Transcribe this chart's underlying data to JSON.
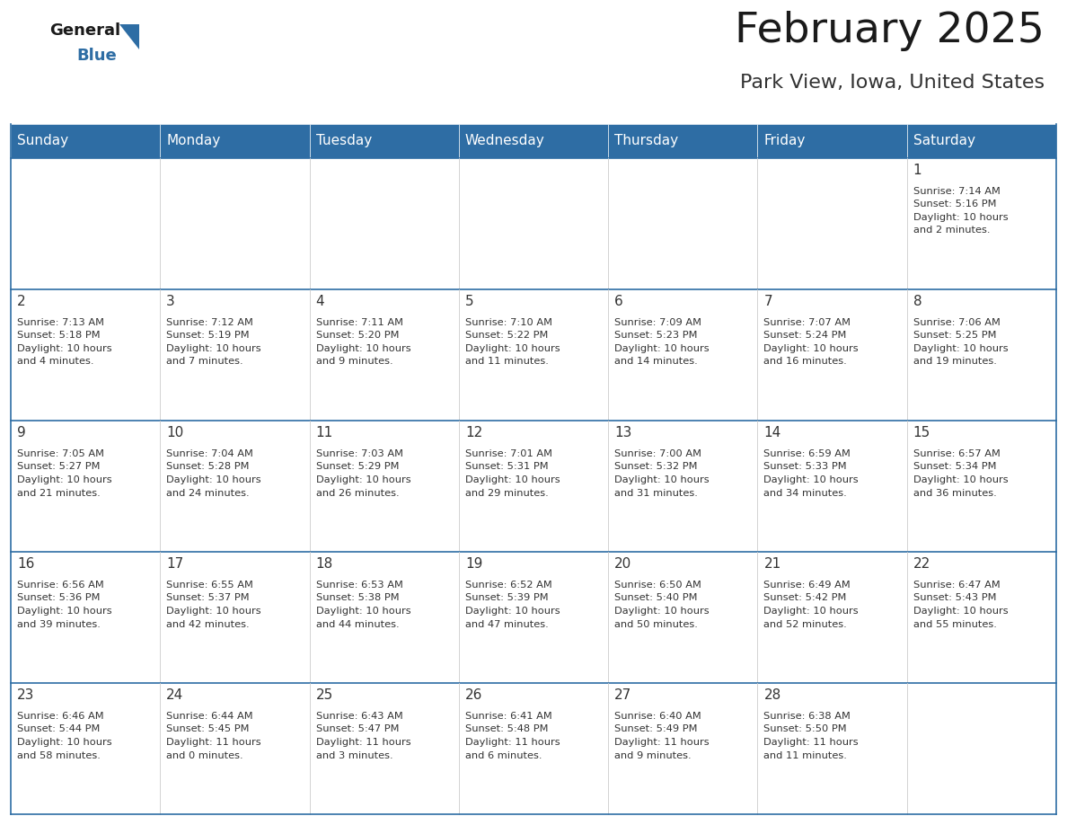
{
  "title": "February 2025",
  "subtitle": "Park View, Iowa, United States",
  "header_color": "#2e6da4",
  "header_text_color": "#ffffff",
  "cell_bg_color": "#ffffff",
  "cell_text_color": "#333333",
  "day_num_color": "#333333",
  "border_color": "#2e6da4",
  "row_border_color": "#2e6da4",
  "days_of_week": [
    "Sunday",
    "Monday",
    "Tuesday",
    "Wednesday",
    "Thursday",
    "Friday",
    "Saturday"
  ],
  "calendar_data": [
    [
      null,
      null,
      null,
      null,
      null,
      null,
      {
        "day": 1,
        "sunrise": "7:14 AM",
        "sunset": "5:16 PM",
        "daylight": "10 hours and 2 minutes."
      }
    ],
    [
      {
        "day": 2,
        "sunrise": "7:13 AM",
        "sunset": "5:18 PM",
        "daylight": "10 hours and 4 minutes."
      },
      {
        "day": 3,
        "sunrise": "7:12 AM",
        "sunset": "5:19 PM",
        "daylight": "10 hours and 7 minutes."
      },
      {
        "day": 4,
        "sunrise": "7:11 AM",
        "sunset": "5:20 PM",
        "daylight": "10 hours and 9 minutes."
      },
      {
        "day": 5,
        "sunrise": "7:10 AM",
        "sunset": "5:22 PM",
        "daylight": "10 hours and 11 minutes."
      },
      {
        "day": 6,
        "sunrise": "7:09 AM",
        "sunset": "5:23 PM",
        "daylight": "10 hours and 14 minutes."
      },
      {
        "day": 7,
        "sunrise": "7:07 AM",
        "sunset": "5:24 PM",
        "daylight": "10 hours and 16 minutes."
      },
      {
        "day": 8,
        "sunrise": "7:06 AM",
        "sunset": "5:25 PM",
        "daylight": "10 hours and 19 minutes."
      }
    ],
    [
      {
        "day": 9,
        "sunrise": "7:05 AM",
        "sunset": "5:27 PM",
        "daylight": "10 hours and 21 minutes."
      },
      {
        "day": 10,
        "sunrise": "7:04 AM",
        "sunset": "5:28 PM",
        "daylight": "10 hours and 24 minutes."
      },
      {
        "day": 11,
        "sunrise": "7:03 AM",
        "sunset": "5:29 PM",
        "daylight": "10 hours and 26 minutes."
      },
      {
        "day": 12,
        "sunrise": "7:01 AM",
        "sunset": "5:31 PM",
        "daylight": "10 hours and 29 minutes."
      },
      {
        "day": 13,
        "sunrise": "7:00 AM",
        "sunset": "5:32 PM",
        "daylight": "10 hours and 31 minutes."
      },
      {
        "day": 14,
        "sunrise": "6:59 AM",
        "sunset": "5:33 PM",
        "daylight": "10 hours and 34 minutes."
      },
      {
        "day": 15,
        "sunrise": "6:57 AM",
        "sunset": "5:34 PM",
        "daylight": "10 hours and 36 minutes."
      }
    ],
    [
      {
        "day": 16,
        "sunrise": "6:56 AM",
        "sunset": "5:36 PM",
        "daylight": "10 hours and 39 minutes."
      },
      {
        "day": 17,
        "sunrise": "6:55 AM",
        "sunset": "5:37 PM",
        "daylight": "10 hours and 42 minutes."
      },
      {
        "day": 18,
        "sunrise": "6:53 AM",
        "sunset": "5:38 PM",
        "daylight": "10 hours and 44 minutes."
      },
      {
        "day": 19,
        "sunrise": "6:52 AM",
        "sunset": "5:39 PM",
        "daylight": "10 hours and 47 minutes."
      },
      {
        "day": 20,
        "sunrise": "6:50 AM",
        "sunset": "5:40 PM",
        "daylight": "10 hours and 50 minutes."
      },
      {
        "day": 21,
        "sunrise": "6:49 AM",
        "sunset": "5:42 PM",
        "daylight": "10 hours and 52 minutes."
      },
      {
        "day": 22,
        "sunrise": "6:47 AM",
        "sunset": "5:43 PM",
        "daylight": "10 hours and 55 minutes."
      }
    ],
    [
      {
        "day": 23,
        "sunrise": "6:46 AM",
        "sunset": "5:44 PM",
        "daylight": "10 hours and 58 minutes."
      },
      {
        "day": 24,
        "sunrise": "6:44 AM",
        "sunset": "5:45 PM",
        "daylight": "11 hours and 0 minutes."
      },
      {
        "day": 25,
        "sunrise": "6:43 AM",
        "sunset": "5:47 PM",
        "daylight": "11 hours and 3 minutes."
      },
      {
        "day": 26,
        "sunrise": "6:41 AM",
        "sunset": "5:48 PM",
        "daylight": "11 hours and 6 minutes."
      },
      {
        "day": 27,
        "sunrise": "6:40 AM",
        "sunset": "5:49 PM",
        "daylight": "11 hours and 9 minutes."
      },
      {
        "day": 28,
        "sunrise": "6:38 AM",
        "sunset": "5:50 PM",
        "daylight": "11 hours and 11 minutes."
      },
      null
    ]
  ]
}
